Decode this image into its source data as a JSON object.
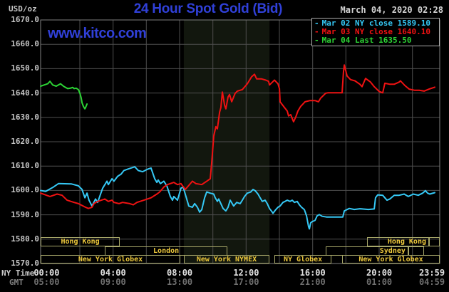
{
  "watermark": "www.kitco.com",
  "timestamp": "March 04, 2020 02:28",
  "axis_names": {
    "ny": "NY Time",
    "gmt": "GMT"
  },
  "legend": {
    "items": [
      {
        "label": "Mar 02 NY close 1589.10",
        "color": "#35c8f5"
      },
      {
        "label": "Mar 03 NY close 1640.10",
        "color": "#ef1212"
      },
      {
        "label": "Mar 04 Last 1635.50",
        "color": "#2cd435"
      }
    ]
  },
  "colors": {
    "background": "#000000",
    "accent_blue": "#3040d8",
    "grid": "#4e4e4e",
    "plot_border": "#808080",
    "nymex_band": "#12170e",
    "y_tick_text": "#c4c4c4",
    "timestamp_text": "#d4d4d4",
    "ny_tick_text": "#e0e0e0",
    "gmt_tick_text": "#6f6f6f",
    "ny_caption_text": "#c9c9c9",
    "gmt_caption_text": "#808080",
    "session_border": "#a8a86a",
    "session_text": "#eec93c"
  },
  "chart_data": {
    "type": "line",
    "title": "24 Hour Spot Gold (Bid)",
    "ylabel": "USD/oz",
    "ylim": [
      1570,
      1670
    ],
    "ytick_step": 10,
    "ytick_format_suffix": ".0",
    "grid": true,
    "legend_position": "top-right",
    "x_axis": {
      "unit": "hours NY time",
      "range_hours": [
        0,
        24
      ],
      "gridline_start_hour": 2.357,
      "gridline_step_hours": 2,
      "label_hours": [
        0.36,
        4.36,
        8.36,
        12.36,
        16.36,
        20.36,
        23.53
      ],
      "ny_labels": [
        "00:00",
        "04:00",
        "08:00",
        "12:00",
        "16:00",
        "20:00",
        "23:59"
      ],
      "gmt_labels": [
        "05:00",
        "09:00",
        "13:00",
        "17:00",
        "21:00",
        "01:00",
        "04:59"
      ]
    },
    "nymex_session_band_hours": [
      8.61,
      13.76
    ],
    "series": [
      {
        "name": "Mar 02 NY close 1589.10",
        "color": "#35c8f5",
        "points": [
          [
            0,
            1600
          ],
          [
            0.3,
            1599.6
          ],
          [
            0.77,
            1601.4
          ],
          [
            1.07,
            1602.8
          ],
          [
            1.84,
            1602.7
          ],
          [
            2.27,
            1601.9
          ],
          [
            2.49,
            1600.4
          ],
          [
            2.66,
            1597
          ],
          [
            2.79,
            1598.9
          ],
          [
            2.91,
            1596
          ],
          [
            3.09,
            1593.6
          ],
          [
            3.3,
            1596.5
          ],
          [
            3.43,
            1595.1
          ],
          [
            3.73,
            1600.9
          ],
          [
            3.99,
            1603.8
          ],
          [
            4.07,
            1602.4
          ],
          [
            4.29,
            1604.8
          ],
          [
            4.41,
            1603.8
          ],
          [
            4.63,
            1605.8
          ],
          [
            4.84,
            1606.7
          ],
          [
            5.01,
            1608.2
          ],
          [
            5.23,
            1608.7
          ],
          [
            5.44,
            1609.2
          ],
          [
            5.66,
            1609.7
          ],
          [
            5.87,
            1608.2
          ],
          [
            6.13,
            1607.7
          ],
          [
            6.43,
            1608.7
          ],
          [
            6.64,
            1609.2
          ],
          [
            6.86,
            1604.8
          ],
          [
            6.99,
            1603.3
          ],
          [
            7.07,
            1604.3
          ],
          [
            7.2,
            1602.8
          ],
          [
            7.41,
            1603.8
          ],
          [
            7.59,
            1601.9
          ],
          [
            7.8,
            1597.5
          ],
          [
            7.93,
            1596
          ],
          [
            8.01,
            1597.5
          ],
          [
            8.23,
            1596
          ],
          [
            8.44,
            1600.9
          ],
          [
            8.57,
            1601.4
          ],
          [
            8.91,
            1593.6
          ],
          [
            9.13,
            1593.1
          ],
          [
            9.26,
            1594.6
          ],
          [
            9.43,
            1593.1
          ],
          [
            9.56,
            1591.1
          ],
          [
            9.69,
            1592.1
          ],
          [
            9.86,
            1597
          ],
          [
            9.99,
            1599.4
          ],
          [
            10.2,
            1598.9
          ],
          [
            10.41,
            1598.5
          ],
          [
            10.5,
            1597
          ],
          [
            10.63,
            1595.5
          ],
          [
            10.71,
            1596.5
          ],
          [
            10.84,
            1594.6
          ],
          [
            10.97,
            1592.6
          ],
          [
            11.14,
            1591.6
          ],
          [
            11.27,
            1593.1
          ],
          [
            11.4,
            1596
          ],
          [
            11.61,
            1593.6
          ],
          [
            11.79,
            1595.1
          ],
          [
            12,
            1594.6
          ],
          [
            12.13,
            1596
          ],
          [
            12.26,
            1597.5
          ],
          [
            12.43,
            1598.9
          ],
          [
            12.64,
            1599.4
          ],
          [
            12.77,
            1600.4
          ],
          [
            12.9,
            1599.9
          ],
          [
            13.07,
            1598.5
          ],
          [
            13.2,
            1597
          ],
          [
            13.33,
            1595.5
          ],
          [
            13.5,
            1596
          ],
          [
            13.63,
            1594.6
          ],
          [
            13.76,
            1592.6
          ],
          [
            13.93,
            1591.1
          ],
          [
            13.97,
            1590.6
          ],
          [
            14.14,
            1592.1
          ],
          [
            14.27,
            1593.1
          ],
          [
            14.4,
            1593.6
          ],
          [
            14.57,
            1595.1
          ],
          [
            14.7,
            1595.5
          ],
          [
            14.83,
            1596
          ],
          [
            15,
            1595.5
          ],
          [
            15.13,
            1596
          ],
          [
            15.26,
            1595.1
          ],
          [
            15.43,
            1595.5
          ],
          [
            15.56,
            1594.1
          ],
          [
            15.69,
            1593.1
          ],
          [
            15.86,
            1592.1
          ],
          [
            15.99,
            1589.6
          ],
          [
            16.11,
            1585.2
          ],
          [
            16.16,
            1584.2
          ],
          [
            16.24,
            1586.7
          ],
          [
            16.33,
            1587.2
          ],
          [
            16.5,
            1587.7
          ],
          [
            16.63,
            1589.6
          ],
          [
            16.76,
            1590.1
          ],
          [
            16.93,
            1589.4
          ],
          [
            17.19,
            1589.1
          ],
          [
            18.17,
            1589.1
          ],
          [
            18.26,
            1591.6
          ],
          [
            18.56,
            1592.6
          ],
          [
            18.86,
            1592.2
          ],
          [
            19.2,
            1592.5
          ],
          [
            19.71,
            1592.2
          ],
          [
            20.06,
            1592.4
          ],
          [
            20.14,
            1597
          ],
          [
            20.27,
            1598.2
          ],
          [
            20.57,
            1598
          ],
          [
            20.7,
            1597
          ],
          [
            20.83,
            1596
          ],
          [
            21,
            1596.5
          ],
          [
            21.26,
            1598
          ],
          [
            21.56,
            1598
          ],
          [
            21.86,
            1598.5
          ],
          [
            22.11,
            1597.5
          ],
          [
            22.41,
            1598.5
          ],
          [
            22.71,
            1598
          ],
          [
            22.97,
            1598.9
          ],
          [
            23.14,
            1599.9
          ],
          [
            23.27,
            1598.9
          ],
          [
            23.4,
            1598.5
          ],
          [
            23.7,
            1599.1
          ]
        ]
      },
      {
        "name": "Mar 03 NY close 1640.10",
        "color": "#ef1212",
        "points": [
          [
            0,
            1598.9
          ],
          [
            0.56,
            1597.5
          ],
          [
            0.99,
            1598.5
          ],
          [
            1.29,
            1598
          ],
          [
            1.59,
            1596
          ],
          [
            2.01,
            1595.1
          ],
          [
            2.27,
            1594.6
          ],
          [
            2.7,
            1593.1
          ],
          [
            2.87,
            1592.6
          ],
          [
            3.09,
            1593.1
          ],
          [
            3.21,
            1594.6
          ],
          [
            3.43,
            1595.5
          ],
          [
            3.86,
            1596.5
          ],
          [
            4.07,
            1595.5
          ],
          [
            4.29,
            1596
          ],
          [
            4.41,
            1595.1
          ],
          [
            4.71,
            1594.6
          ],
          [
            4.93,
            1595.1
          ],
          [
            5.36,
            1594.6
          ],
          [
            5.57,
            1594.1
          ],
          [
            5.79,
            1595.1
          ],
          [
            6.21,
            1596
          ],
          [
            6.64,
            1597
          ],
          [
            6.99,
            1598.5
          ],
          [
            7.16,
            1599.4
          ],
          [
            7.41,
            1601.4
          ],
          [
            7.63,
            1602.4
          ],
          [
            8.01,
            1603.3
          ],
          [
            8.23,
            1602.4
          ],
          [
            8.44,
            1602.8
          ],
          [
            8.7,
            1600.4
          ],
          [
            9.13,
            1603.8
          ],
          [
            9.34,
            1602.8
          ],
          [
            9.69,
            1602.4
          ],
          [
            9.99,
            1603.8
          ],
          [
            10.2,
            1604.8
          ],
          [
            10.29,
            1611.6
          ],
          [
            10.41,
            1622.3
          ],
          [
            10.54,
            1626.2
          ],
          [
            10.63,
            1625.3
          ],
          [
            10.76,
            1632.1
          ],
          [
            10.84,
            1634
          ],
          [
            10.93,
            1640.4
          ],
          [
            11.06,
            1635
          ],
          [
            11.14,
            1633.5
          ],
          [
            11.27,
            1638.4
          ],
          [
            11.36,
            1639.4
          ],
          [
            11.49,
            1636.4
          ],
          [
            11.7,
            1639.9
          ],
          [
            11.83,
            1640.8
          ],
          [
            12.13,
            1641.4
          ],
          [
            12.43,
            1643.8
          ],
          [
            12.69,
            1646.7
          ],
          [
            12.86,
            1647.7
          ],
          [
            12.99,
            1645.8
          ],
          [
            13.29,
            1645.8
          ],
          [
            13.54,
            1645.3
          ],
          [
            13.71,
            1644.8
          ],
          [
            13.76,
            1643.3
          ],
          [
            14.06,
            1645.3
          ],
          [
            14.27,
            1643.8
          ],
          [
            14.36,
            1641.8
          ],
          [
            14.4,
            1636.4
          ],
          [
            14.61,
            1634.5
          ],
          [
            14.83,
            1632.6
          ],
          [
            14.91,
            1630.6
          ],
          [
            15.04,
            1631.1
          ],
          [
            15.21,
            1628.2
          ],
          [
            15.34,
            1630.1
          ],
          [
            15.47,
            1632.6
          ],
          [
            15.64,
            1634.5
          ],
          [
            15.9,
            1636.4
          ],
          [
            16.2,
            1636.9
          ],
          [
            16.5,
            1636.9
          ],
          [
            16.71,
            1636.4
          ],
          [
            16.84,
            1637.9
          ],
          [
            17.14,
            1639.9
          ],
          [
            17.27,
            1640.1
          ],
          [
            18.13,
            1640.1
          ],
          [
            18.21,
            1648.5
          ],
          [
            18.26,
            1651.5
          ],
          [
            18.43,
            1647
          ],
          [
            18.64,
            1645.5
          ],
          [
            18.9,
            1645
          ],
          [
            19.2,
            1643.6
          ],
          [
            19.33,
            1642.6
          ],
          [
            19.54,
            1646
          ],
          [
            19.84,
            1644.5
          ],
          [
            20.06,
            1642.6
          ],
          [
            20.36,
            1640.6
          ],
          [
            20.57,
            1640.1
          ],
          [
            20.7,
            1644
          ],
          [
            21,
            1643.6
          ],
          [
            21.26,
            1643.6
          ],
          [
            21.56,
            1644.5
          ],
          [
            21.64,
            1645
          ],
          [
            21.9,
            1643.1
          ],
          [
            22.16,
            1641.6
          ],
          [
            22.5,
            1641.1
          ],
          [
            22.76,
            1641.1
          ],
          [
            23.06,
            1640.8
          ],
          [
            23.36,
            1641.6
          ],
          [
            23.7,
            1642.4
          ]
        ]
      },
      {
        "name": "Mar 04 Last 1635.50",
        "color": "#2cd435",
        "points": [
          [
            0,
            1642.8
          ],
          [
            0.21,
            1643.3
          ],
          [
            0.43,
            1643.8
          ],
          [
            0.56,
            1644.8
          ],
          [
            0.73,
            1643.3
          ],
          [
            0.94,
            1642.8
          ],
          [
            1.07,
            1643.3
          ],
          [
            1.2,
            1643.8
          ],
          [
            1.37,
            1642.8
          ],
          [
            1.5,
            1642.3
          ],
          [
            1.63,
            1641.8
          ],
          [
            1.8,
            1642
          ],
          [
            1.93,
            1642.3
          ],
          [
            2.01,
            1641.8
          ],
          [
            2.14,
            1642
          ],
          [
            2.27,
            1641.4
          ],
          [
            2.36,
            1639.9
          ],
          [
            2.44,
            1638
          ],
          [
            2.49,
            1636
          ],
          [
            2.57,
            1634.5
          ],
          [
            2.66,
            1633.5
          ],
          [
            2.7,
            1634
          ],
          [
            2.79,
            1635.5
          ]
        ]
      }
    ],
    "sessions": [
      {
        "row": 0,
        "from": 0,
        "to": 4.76,
        "label": "Hong Kong",
        "align": "center"
      },
      {
        "row": 0,
        "from": 19.63,
        "to": 23.36,
        "label": "Hong Kong",
        "align": "right"
      },
      {
        "row": 0,
        "from": 23.36,
        "to": 24,
        "label": "",
        "align": "center"
      },
      {
        "row": 1,
        "from": 3.86,
        "to": 11.23,
        "label": "London",
        "align": "center"
      },
      {
        "row": 1,
        "from": 17.14,
        "to": 22.11,
        "label": "Sydney",
        "align": "right"
      },
      {
        "row": 1,
        "from": 22.11,
        "to": 23.06,
        "label": "",
        "align": "center"
      },
      {
        "row": 2,
        "from": 0,
        "to": 8.4,
        "label": "New York Globex",
        "align": "center"
      },
      {
        "row": 2,
        "from": 8.61,
        "to": 13.76,
        "label": "New York NYMEX",
        "align": "center"
      },
      {
        "row": 2,
        "from": 14.06,
        "to": 17.49,
        "label": "NY Globex",
        "align": "center"
      },
      {
        "row": 2,
        "from": 18.13,
        "to": 24,
        "label": "New York Globex",
        "align": "center"
      }
    ]
  }
}
